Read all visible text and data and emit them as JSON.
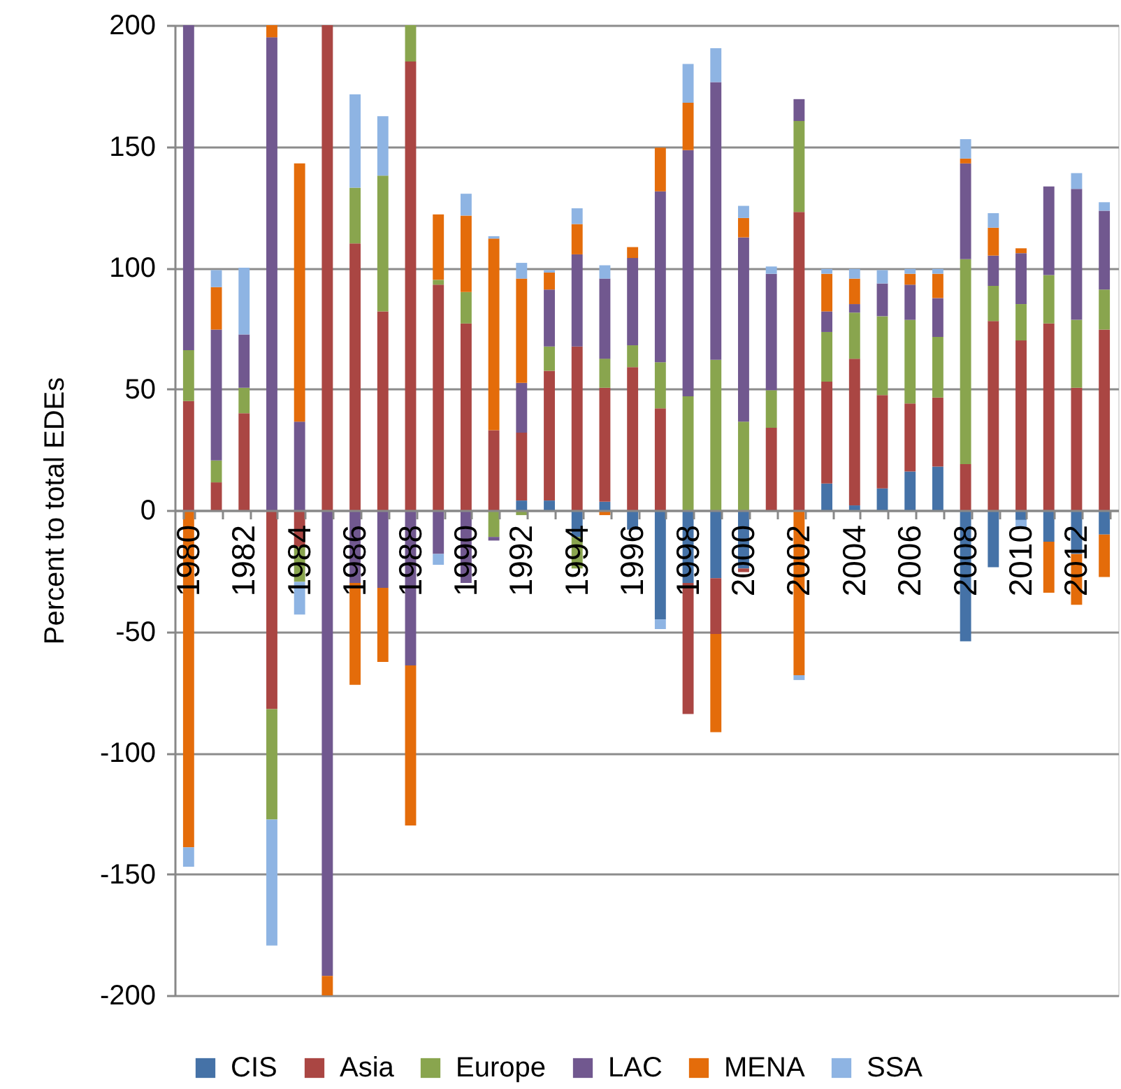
{
  "chart_data": {
    "type": "bar",
    "stacked": true,
    "ylabel": "Percent to total EDEs",
    "categories": [
      "1980",
      null,
      "1982",
      null,
      "1984",
      null,
      "1986",
      null,
      "1988",
      null,
      "1990",
      null,
      "1992",
      null,
      "1994",
      null,
      "1996",
      null,
      "1998",
      null,
      "2000",
      null,
      "2002",
      null,
      "2004",
      null,
      "2006",
      null,
      "2008",
      null,
      "2010",
      null,
      "2012",
      null
    ],
    "ylim": [
      -200,
      200
    ],
    "yticks": [
      -200,
      -150,
      -100,
      -50,
      0,
      50,
      100,
      150,
      200
    ],
    "grid": "y",
    "legend": "bottom",
    "series": [
      {
        "name": "CIS",
        "color": "#4572a7",
        "values": [
          null,
          null,
          null,
          null,
          null,
          null,
          null,
          null,
          null,
          null,
          null,
          null,
          4,
          4,
          -11,
          3.5,
          -8,
          -45,
          -30,
          -28,
          -24,
          null,
          null,
          11,
          2,
          9,
          16,
          18,
          -54,
          -23.5,
          -4,
          -13,
          -18,
          -10
        ]
      },
      {
        "name": "Asia",
        "color": "#aa4643",
        "values": [
          45,
          11.5,
          40,
          -82,
          -15,
          200,
          110,
          82,
          185,
          93,
          77,
          33,
          28,
          53.5,
          67.5,
          47,
          59,
          42,
          -54,
          -23,
          -1.5,
          34,
          123,
          42,
          60.5,
          38.5,
          28,
          28.5,
          19,
          78,
          70,
          77,
          50.5,
          74.5
        ]
      },
      {
        "name": "Europe",
        "color": "#89a54e",
        "values": [
          21,
          9,
          10.5,
          -45.5,
          -14.5,
          null,
          23,
          56,
          15,
          2,
          13,
          -11,
          -2,
          10,
          -13,
          12,
          9,
          19,
          47,
          62,
          36.5,
          15.5,
          37.5,
          20.5,
          19,
          32.5,
          34.5,
          25,
          84.5,
          14.5,
          15,
          20,
          28,
          16.5
        ]
      },
      {
        "name": "LAC",
        "color": "#71588f",
        "values": [
          134,
          54,
          22,
          195,
          36.5,
          -192,
          -30,
          -32,
          -64,
          -18,
          -30,
          -1.5,
          20.5,
          23.5,
          38,
          33,
          36,
          70.5,
          101.5,
          114.5,
          76,
          48,
          9,
          8.5,
          3.5,
          13.5,
          14.5,
          16,
          39.5,
          12.5,
          21,
          36.5,
          54,
          32.5
        ]
      },
      {
        "name": "MENA",
        "color": "#e46c0a",
        "values": [
          -139,
          17.5,
          null,
          5,
          106.5,
          -8,
          -42,
          -30.5,
          -66,
          27,
          31.5,
          79,
          43,
          7,
          12.5,
          -2,
          4.5,
          18,
          19.5,
          -40.5,
          8,
          -0.5,
          -68,
          15.5,
          10.5,
          null,
          4.5,
          10,
          2,
          11.5,
          2,
          -21,
          -21,
          -17.5
        ]
      },
      {
        "name": "SSA",
        "color": "#8eb4e3",
        "values": [
          -8,
          7,
          27.5,
          -52,
          -13.5,
          null,
          38.5,
          24.5,
          null,
          -4.5,
          9,
          1,
          6.5,
          1,
          6.5,
          5.5,
          null,
          -4,
          16,
          14,
          5,
          3,
          -2,
          2,
          4,
          5.5,
          2,
          2,
          8,
          6,
          -3.5,
          null,
          6.5,
          3.5
        ]
      }
    ]
  }
}
